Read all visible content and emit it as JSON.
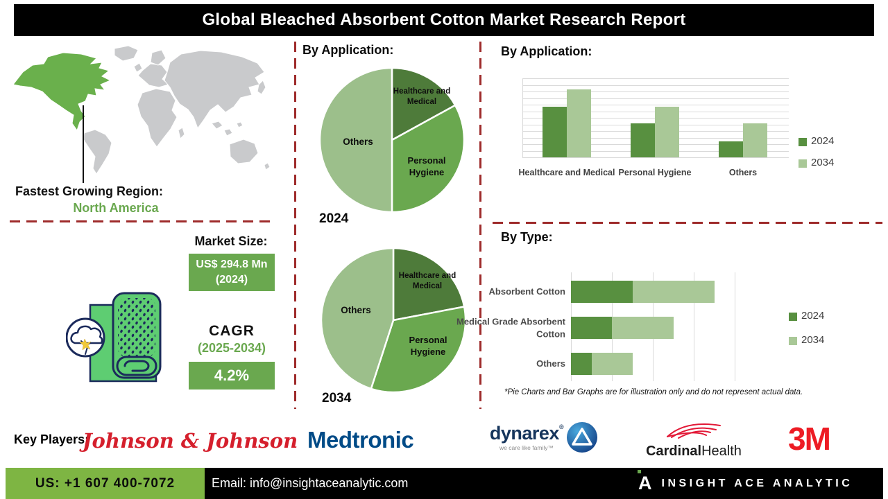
{
  "title": "Global Bleached Absorbent Cotton Market Research Report",
  "region": {
    "label": "Fastest Growing Region:",
    "value": "North America"
  },
  "market_size": {
    "label": "Market Size:",
    "value": "US$ 294.8 Mn (2024)",
    "cagr_label": "CAGR",
    "cagr_period": "(2025-2034)",
    "cagr_value": "4.2%"
  },
  "chart_data": [
    {
      "id": "pie-2024",
      "type": "pie",
      "title": "By Application:",
      "year_label": "2024",
      "slices": [
        {
          "label": "Healthcare and Medical",
          "value": 17,
          "color": "#4e7b3a"
        },
        {
          "label": "Personal Hygiene",
          "value": 33,
          "color": "#6aa84f"
        },
        {
          "label": "Others",
          "value": 50,
          "color": "#9cbf8b"
        }
      ]
    },
    {
      "id": "pie-2034",
      "type": "pie",
      "title": "By Application:",
      "year_label": "2034",
      "slices": [
        {
          "label": "Healthcare and Medical",
          "value": 22,
          "color": "#4e7b3a"
        },
        {
          "label": "Personal Hygiene",
          "value": 33,
          "color": "#6aa84f"
        },
        {
          "label": "Others",
          "value": 45,
          "color": "#9cbf8b"
        }
      ]
    },
    {
      "id": "bar-application",
      "type": "bar",
      "title": "By Application:",
      "categories": [
        "Healthcare and Medical",
        "Personal Hygiene",
        "Others"
      ],
      "series": [
        {
          "name": "2024",
          "color": "#589040",
          "values": [
            7.7,
            5.2,
            2.4
          ]
        },
        {
          "name": "2034",
          "color": "#a9c897",
          "values": [
            10.3,
            7.7,
            5.2
          ]
        }
      ],
      "ylim": [
        0,
        12
      ],
      "gridlines": 12,
      "legend_position": "right"
    },
    {
      "id": "hbar-type",
      "type": "stacked-hbar",
      "title": "By Type:",
      "categories": [
        "Absorbent Cotton",
        "Medical Grade Absorbent Cotton",
        "Others"
      ],
      "series": [
        {
          "name": "2024",
          "color": "#589040",
          "values": [
            1.5,
            1.0,
            0.5
          ]
        },
        {
          "name": "2034",
          "color": "#a9c897",
          "values": [
            2.0,
            1.5,
            1.0
          ]
        }
      ],
      "xlim": [
        0,
        4
      ],
      "gridlines": 4,
      "legend_position": "right"
    }
  ],
  "disclaimer": "*Pie Charts and Bar Graphs are for illustration only and do not represent actual data.",
  "key_players": {
    "label": "Key Players:",
    "companies": [
      {
        "name": "Johnson & Johnson"
      },
      {
        "name": "Medtronic"
      },
      {
        "name": "dynarex",
        "reg": "®",
        "tagline": "we care like family™"
      },
      {
        "name": "CardinalHealth",
        "name_bold": "Cardinal",
        "name_rest": "Health"
      },
      {
        "name": "3M"
      }
    ]
  },
  "footer": {
    "phone": "US: +1 607 400-7072",
    "email": "Email: info@insightaceanalytic.com",
    "brand_letter": "A",
    "brand": "INSIGHT ACE ANALYTIC"
  },
  "colors": {
    "accent_green": "#6aa84f",
    "dark_green": "#4e7b3a",
    "light_green": "#9cbf8b",
    "series_2024": "#589040",
    "series_2034": "#a9c897",
    "dashed_divider": "#9e2b2b",
    "map_highlight": "#6ab04c",
    "map_land": "#c9cacc",
    "footer_green": "#7eb543"
  }
}
